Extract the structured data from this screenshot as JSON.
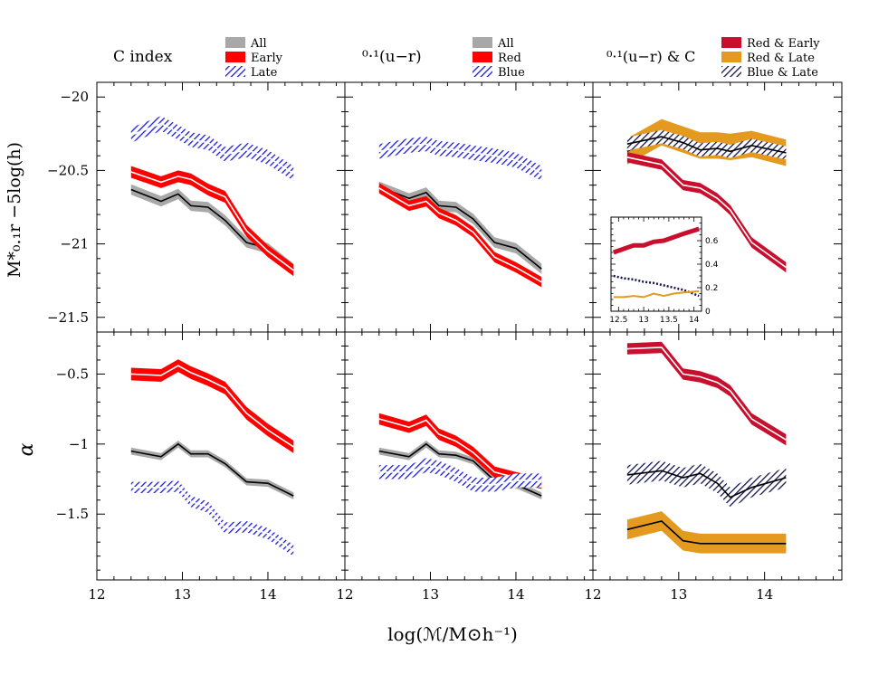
{
  "chart_data": {
    "type": "line",
    "xlabel": "log(ℳ/M⊙h⁻¹)",
    "ylabel_top": "M*₀.₁r −5log(h)",
    "ylabel_bottom": "α",
    "xlim": [
      12,
      14.9
    ],
    "x_ticks": [
      12,
      13,
      14
    ],
    "top_ylim": [
      -21.6,
      -19.9
    ],
    "top_y_ticks": [
      "-20",
      "-20.5",
      "-21",
      "-21.5"
    ],
    "bottom_ylim": [
      -1.97,
      -0.2
    ],
    "bottom_y_ticks": [
      "-0.5",
      "-1",
      "-1.5"
    ],
    "colors": {
      "all": "#a8a8a8",
      "red": "#ff0000",
      "blue": "#1a1adc",
      "crimson": "#c8102e",
      "orange": "#e39a1f",
      "navy": "#11154a"
    },
    "x": [
      12.4,
      12.75,
      12.95,
      13.1,
      13.3,
      13.5,
      13.75,
      14,
      14.3
    ],
    "x_right": [
      12.4,
      12.8,
      13.05,
      13.25,
      13.45,
      13.6,
      13.85,
      14.25
    ],
    "panels": [
      {
        "title": "C index",
        "legend": [
          {
            "label": "All",
            "style": "solid",
            "color": "#a8a8a8"
          },
          {
            "label": "Early",
            "style": "solid",
            "color": "#ff0000"
          },
          {
            "label": "Late",
            "style": "hatch",
            "color": "#1a1adc"
          }
        ],
        "mstar": [
          {
            "name": "All",
            "color": "#a8a8a8",
            "style": "solid",
            "center": [
              -20.63,
              -20.71,
              -20.66,
              -20.74,
              -20.75,
              -20.84,
              -20.99,
              -21.03,
              -21.17
            ],
            "halfwidth": 0.035
          },
          {
            "name": "Early",
            "color": "#ff0000",
            "style": "solid",
            "center": [
              -20.51,
              -20.58,
              -20.54,
              -20.56,
              -20.63,
              -20.68,
              -20.91,
              -21.05,
              -21.18
            ],
            "halfwidth": 0.04
          },
          {
            "name": "Late",
            "color": "#1a1adc",
            "style": "hatch",
            "center": [
              -20.26,
              -20.18,
              -20.24,
              -20.29,
              -20.31,
              -20.39,
              -20.36,
              -20.41,
              -20.52
            ],
            "halfwidth": 0.05
          }
        ],
        "alpha": [
          {
            "name": "All",
            "color": "#a8a8a8",
            "style": "solid",
            "center": [
              -1.05,
              -1.09,
              -1.0,
              -1.07,
              -1.07,
              -1.14,
              -1.27,
              -1.28,
              -1.37
            ],
            "halfwidth": 0.025
          },
          {
            "name": "Early",
            "color": "#ff0000",
            "style": "solid",
            "center": [
              -0.5,
              -0.51,
              -0.44,
              -0.49,
              -0.54,
              -0.6,
              -0.78,
              -0.9,
              -1.02
            ],
            "halfwidth": 0.045
          },
          {
            "name": "Late",
            "color": "#1a1adc",
            "style": "hatch",
            "center": [
              -1.31,
              -1.31,
              -1.3,
              -1.41,
              -1.45,
              -1.6,
              -1.59,
              -1.64,
              -1.76
            ],
            "halfwidth": 0.04
          }
        ]
      },
      {
        "title": "⁰·¹(u−r)",
        "legend": [
          {
            "label": "All",
            "style": "solid",
            "color": "#a8a8a8"
          },
          {
            "label": "Red",
            "style": "solid",
            "color": "#ff0000"
          },
          {
            "label": "Blue",
            "style": "hatch",
            "color": "#1a1adc"
          }
        ],
        "mstar": [
          {
            "name": "All",
            "color": "#a8a8a8",
            "style": "solid",
            "center": [
              -20.61,
              -20.69,
              -20.65,
              -20.74,
              -20.75,
              -20.83,
              -20.99,
              -21.03,
              -21.17
            ],
            "halfwidth": 0.035
          },
          {
            "name": "Red",
            "color": "#ff0000",
            "style": "solid",
            "center": [
              -20.62,
              -20.74,
              -20.71,
              -20.79,
              -20.84,
              -20.92,
              -21.09,
              -21.16,
              -21.26
            ],
            "halfwidth": 0.035
          },
          {
            "name": "Blue",
            "color": "#1a1adc",
            "style": "hatch",
            "center": [
              -20.37,
              -20.33,
              -20.32,
              -20.35,
              -20.36,
              -20.38,
              -20.4,
              -20.43,
              -20.52
            ],
            "halfwidth": 0.05
          }
        ],
        "alpha": [
          {
            "name": "All",
            "color": "#a8a8a8",
            "style": "solid",
            "center": [
              -1.05,
              -1.09,
              -1.0,
              -1.07,
              -1.08,
              -1.12,
              -1.26,
              -1.29,
              -1.37
            ],
            "halfwidth": 0.025
          },
          {
            "name": "Red",
            "color": "#ff0000",
            "style": "solid",
            "center": [
              -0.82,
              -0.88,
              -0.83,
              -0.93,
              -0.98,
              -1.06,
              -1.2,
              -1.24,
              -1.28
            ],
            "halfwidth": 0.04
          },
          {
            "name": "Blue",
            "color": "#1a1adc",
            "style": "hatch",
            "center": [
              -1.2,
              -1.2,
              -1.15,
              -1.17,
              -1.22,
              -1.29,
              -1.29,
              -1.26,
              -1.26
            ],
            "halfwidth": 0.05
          }
        ]
      },
      {
        "title": "⁰·¹(u−r) & C",
        "legend": [
          {
            "label": "Red & Early",
            "style": "solid",
            "color": "#c8102e"
          },
          {
            "label": "Red & Late",
            "style": "solid",
            "color": "#e39a1f"
          },
          {
            "label": "Blue & Late",
            "style": "hatch",
            "color": "#11154a"
          }
        ],
        "mstar": [
          {
            "name": "Red & Late",
            "color": "#e39a1f",
            "style": "solid",
            "center": [
              -20.37,
              -20.24,
              -20.29,
              -20.33,
              -20.33,
              -20.34,
              -20.32,
              -20.38
            ],
            "halfwidth": 0.09
          },
          {
            "name": "Blue & Late",
            "color": "#11154a",
            "style": "hatch",
            "center": [
              -20.32,
              -20.27,
              -20.31,
              -20.36,
              -20.35,
              -20.37,
              -20.33,
              -20.38
            ],
            "halfwidth": 0.045
          },
          {
            "name": "Red & Early",
            "color": "#c8102e",
            "style": "solid",
            "center": [
              -20.41,
              -20.46,
              -20.6,
              -20.62,
              -20.69,
              -20.77,
              -20.99,
              -21.16
            ],
            "halfwidth": 0.035
          }
        ],
        "alpha": [
          {
            "name": "Red & Early",
            "color": "#c8102e",
            "style": "solid",
            "center": [
              -0.32,
              -0.31,
              -0.5,
              -0.52,
              -0.56,
              -0.62,
              -0.82,
              -0.97
            ],
            "halfwidth": 0.04
          },
          {
            "name": "Blue & Late",
            "color": "#11154a",
            "style": "hatch",
            "center": [
              -1.22,
              -1.19,
              -1.24,
              -1.21,
              -1.28,
              -1.38,
              -1.31,
              -1.24
            ],
            "halfwidth": 0.07
          },
          {
            "name": "Red & Late",
            "color": "#e39a1f",
            "style": "solid",
            "center": [
              -1.61,
              -1.55,
              -1.69,
              -1.71,
              -1.71,
              -1.71,
              -1.71,
              -1.71
            ],
            "halfwidth": 0.07
          }
        ],
        "inset": {
          "xlim": [
            12.35,
            14.15
          ],
          "ylim": [
            0,
            0.8
          ],
          "x_ticks": [
            "12.5",
            "13",
            "13.5",
            "14"
          ],
          "y_ticks": [
            "0",
            "0.2",
            "0.4",
            "0.6"
          ],
          "x": [
            12.4,
            12.6,
            12.8,
            13.0,
            13.2,
            13.4,
            13.6,
            13.8,
            14.1
          ],
          "series": [
            {
              "name": "Red & Early",
              "color": "#c8102e",
              "style": "band",
              "values": [
                0.5,
                0.53,
                0.56,
                0.56,
                0.59,
                0.6,
                0.63,
                0.66,
                0.7
              ]
            },
            {
              "name": "Blue & Late",
              "color": "#11154a",
              "style": "dotted",
              "values": [
                0.3,
                0.28,
                0.27,
                0.25,
                0.24,
                0.22,
                0.2,
                0.18,
                0.13
              ]
            },
            {
              "name": "Red & Late",
              "color": "#e39a1f",
              "style": "line",
              "values": [
                0.12,
                0.12,
                0.13,
                0.12,
                0.15,
                0.13,
                0.15,
                0.16,
                0.17
              ]
            }
          ]
        }
      }
    ]
  }
}
